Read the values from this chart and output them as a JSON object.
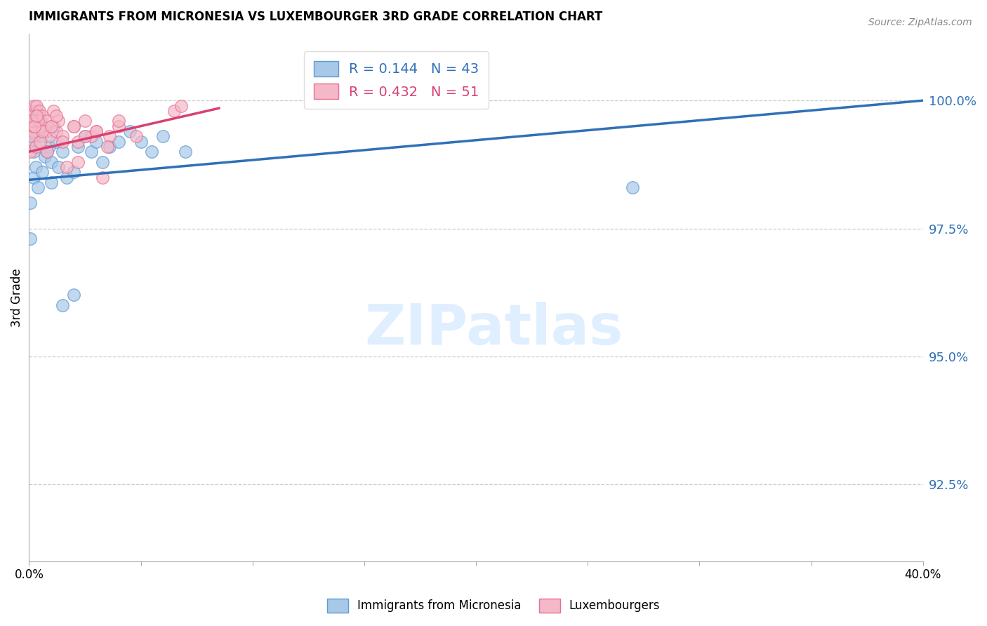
{
  "title": "IMMIGRANTS FROM MICRONESIA VS LUXEMBOURGER 3RD GRADE CORRELATION CHART",
  "source": "Source: ZipAtlas.com",
  "ylabel": "3rd Grade",
  "ytick_values": [
    92.5,
    95.0,
    97.5,
    100.0
  ],
  "xlim": [
    0.0,
    40.0
  ],
  "ylim": [
    91.0,
    101.3
  ],
  "blue_color": "#a8c8e8",
  "pink_color": "#f4b8c8",
  "blue_edge_color": "#5b9bd5",
  "pink_edge_color": "#e87090",
  "blue_line_color": "#3070b8",
  "pink_line_color": "#d84070",
  "legend_blue_label": "R = 0.144   N = 43",
  "legend_pink_label": "R = 0.432   N = 51",
  "blue_line_x0": 0.0,
  "blue_line_x1": 40.0,
  "blue_line_y0": 98.45,
  "blue_line_y1": 100.0,
  "pink_line_x0": 0.0,
  "pink_line_x1": 8.5,
  "pink_line_y0": 99.0,
  "pink_line_y1": 99.85,
  "blue_scatter_x": [
    0.05,
    0.1,
    0.15,
    0.2,
    0.25,
    0.3,
    0.35,
    0.4,
    0.45,
    0.5,
    0.6,
    0.7,
    0.8,
    0.9,
    1.0,
    1.1,
    1.2,
    1.3,
    1.5,
    1.7,
    2.0,
    2.2,
    2.5,
    2.8,
    3.0,
    3.3,
    3.6,
    4.0,
    4.5,
    5.0,
    5.5,
    6.0,
    7.0,
    0.05,
    0.2,
    0.3,
    0.4,
    0.6,
    0.8,
    1.0,
    1.5,
    2.0,
    27.0
  ],
  "blue_scatter_y": [
    97.3,
    99.2,
    99.5,
    99.0,
    99.6,
    99.3,
    99.8,
    99.5,
    99.7,
    99.6,
    99.3,
    98.9,
    99.4,
    99.1,
    98.8,
    99.5,
    99.2,
    98.7,
    99.0,
    98.5,
    98.6,
    99.1,
    99.3,
    99.0,
    99.2,
    98.8,
    99.1,
    99.2,
    99.4,
    99.2,
    99.0,
    99.3,
    99.0,
    98.0,
    98.5,
    98.7,
    98.3,
    98.6,
    99.0,
    98.4,
    96.0,
    96.2,
    98.3
  ],
  "pink_scatter_x": [
    0.05,
    0.1,
    0.15,
    0.2,
    0.25,
    0.3,
    0.35,
    0.4,
    0.45,
    0.5,
    0.6,
    0.7,
    0.8,
    0.9,
    1.0,
    1.1,
    1.2,
    1.3,
    1.5,
    1.7,
    2.0,
    2.2,
    2.5,
    2.8,
    3.0,
    3.3,
    3.6,
    4.0,
    0.05,
    0.15,
    0.2,
    0.3,
    0.4,
    0.5,
    0.6,
    0.8,
    1.0,
    1.2,
    1.5,
    2.0,
    2.5,
    3.0,
    4.0,
    4.8,
    6.5,
    6.8,
    0.1,
    0.25,
    0.35,
    2.2,
    3.5
  ],
  "pink_scatter_y": [
    99.5,
    99.7,
    99.8,
    99.4,
    99.9,
    99.6,
    99.9,
    99.7,
    99.8,
    99.5,
    99.7,
    99.4,
    99.6,
    99.3,
    99.5,
    99.8,
    99.4,
    99.6,
    99.3,
    98.7,
    99.5,
    99.2,
    99.6,
    99.3,
    99.4,
    98.5,
    99.3,
    99.5,
    99.0,
    99.3,
    99.5,
    99.1,
    99.6,
    99.2,
    99.4,
    99.0,
    99.5,
    99.7,
    99.2,
    99.5,
    99.3,
    99.4,
    99.6,
    99.3,
    99.8,
    99.9,
    99.6,
    99.5,
    99.7,
    98.8,
    99.1
  ]
}
